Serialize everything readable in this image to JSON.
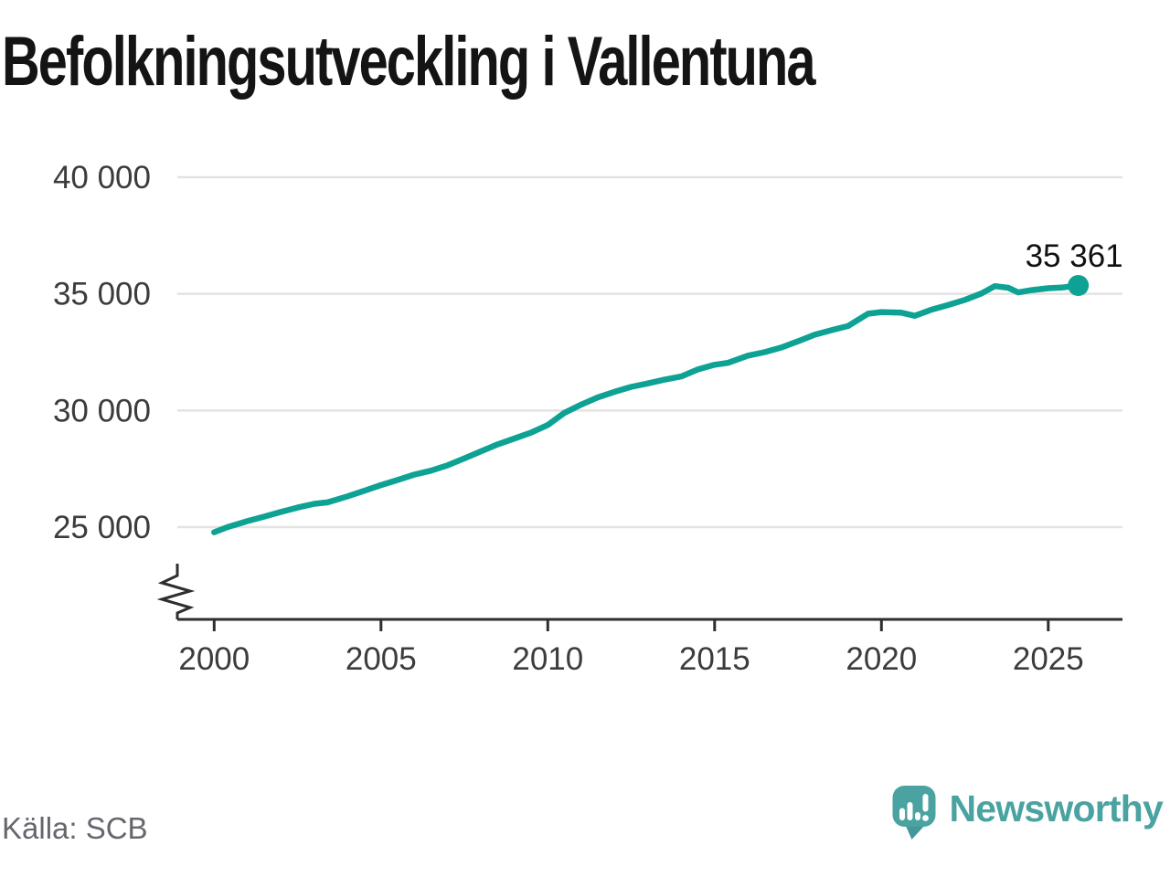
{
  "title": "Befolkningsutveckling i Vallentuna",
  "chart_data": {
    "type": "line",
    "title": "Befolkningsutveckling i Vallentuna",
    "xlabel": "",
    "ylabel": "",
    "grid": "horizontal",
    "legend": "none",
    "axis_break_symbol": true,
    "xlim": [
      1999,
      2027.2
    ],
    "ylim": [
      25000,
      40000
    ],
    "x_ticks": [
      2000,
      2005,
      2010,
      2015,
      2020,
      2025
    ],
    "y_ticks": [
      {
        "value": 25000,
        "label": "25 000"
      },
      {
        "value": 30000,
        "label": "30 000"
      },
      {
        "value": 35000,
        "label": "35 000"
      },
      {
        "value": 40000,
        "label": "40 000"
      }
    ],
    "series": [
      {
        "name": "Folkmängd Vallentuna",
        "color": "#0DA293",
        "points": [
          [
            2000.0,
            24780
          ],
          [
            2000.4,
            25000
          ],
          [
            2001.0,
            25260
          ],
          [
            2001.5,
            25450
          ],
          [
            2002.0,
            25650
          ],
          [
            2002.5,
            25840
          ],
          [
            2003.0,
            26000
          ],
          [
            2003.4,
            26060
          ],
          [
            2004.0,
            26320
          ],
          [
            2004.5,
            26560
          ],
          [
            2005.0,
            26800
          ],
          [
            2005.5,
            27020
          ],
          [
            2006.0,
            27250
          ],
          [
            2006.5,
            27420
          ],
          [
            2007.0,
            27650
          ],
          [
            2007.5,
            27950
          ],
          [
            2008.0,
            28250
          ],
          [
            2008.5,
            28550
          ],
          [
            2009.0,
            28800
          ],
          [
            2009.5,
            29050
          ],
          [
            2010.0,
            29380
          ],
          [
            2010.5,
            29900
          ],
          [
            2011.0,
            30250
          ],
          [
            2011.5,
            30560
          ],
          [
            2012.0,
            30800
          ],
          [
            2012.5,
            31010
          ],
          [
            2013.0,
            31160
          ],
          [
            2013.5,
            31320
          ],
          [
            2014.0,
            31460
          ],
          [
            2014.5,
            31760
          ],
          [
            2015.0,
            31960
          ],
          [
            2015.4,
            32040
          ],
          [
            2016.0,
            32350
          ],
          [
            2016.5,
            32500
          ],
          [
            2017.0,
            32700
          ],
          [
            2017.6,
            33020
          ],
          [
            2018.0,
            33250
          ],
          [
            2018.6,
            33480
          ],
          [
            2019.0,
            33620
          ],
          [
            2019.6,
            34150
          ],
          [
            2020.0,
            34220
          ],
          [
            2020.6,
            34190
          ],
          [
            2021.0,
            34060
          ],
          [
            2021.5,
            34320
          ],
          [
            2022.0,
            34520
          ],
          [
            2022.5,
            34740
          ],
          [
            2023.0,
            35020
          ],
          [
            2023.4,
            35330
          ],
          [
            2023.8,
            35260
          ],
          [
            2024.1,
            35060
          ],
          [
            2024.5,
            35160
          ],
          [
            2025.0,
            35240
          ],
          [
            2025.4,
            35270
          ],
          [
            2025.9,
            35361
          ]
        ]
      }
    ],
    "end_annotation": {
      "label": "35 361",
      "value": 35361
    }
  },
  "footer": {
    "source": "Källa: SCB",
    "brand": "Newsworthy"
  },
  "icons": {
    "logo": "newsworthy-speech-bubble-barchart-icon",
    "axis_break": "axis-break-zigzag-icon"
  },
  "colors": {
    "line": "#0DA293",
    "marker": "#0DA293",
    "grid": "#E3E3E3",
    "axis": "#2E2E2E",
    "tick_text": "#3C3C3C",
    "annotation_text": "#111111",
    "title_text": "#141414",
    "source_text": "#66666E",
    "brand_teal": "#4AA3A1",
    "background": "#FFFFFF"
  }
}
